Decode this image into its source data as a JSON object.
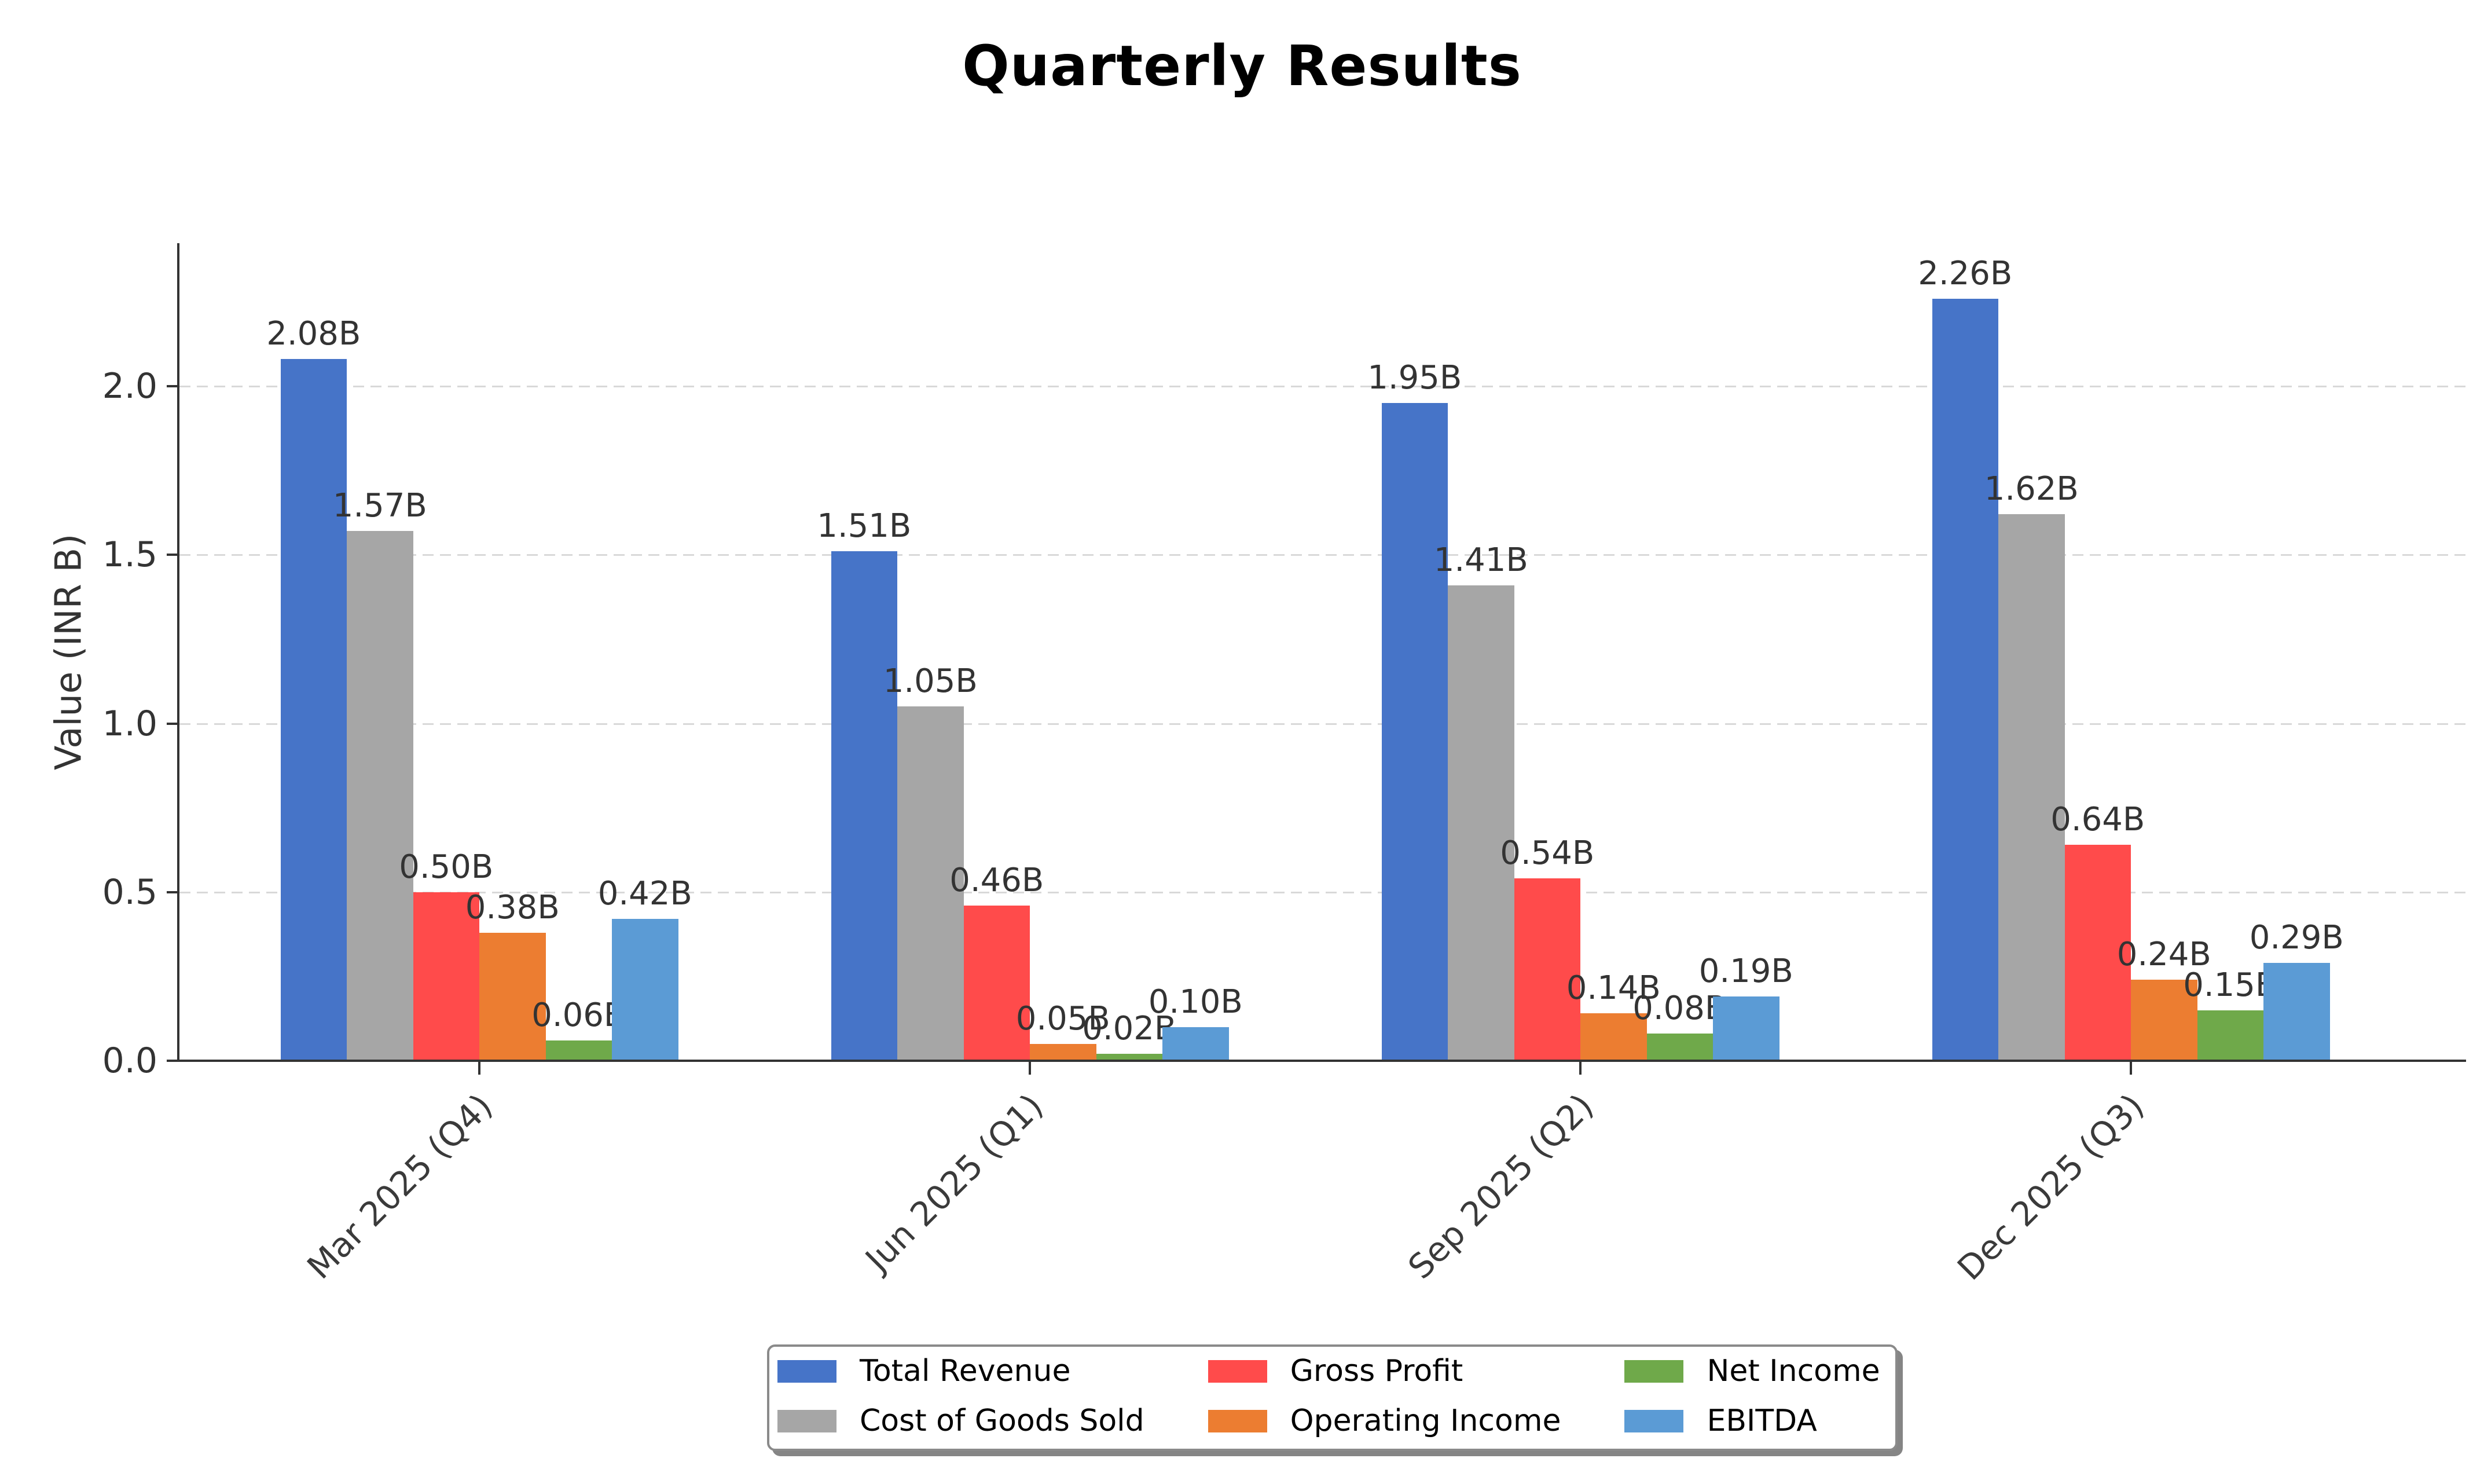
{
  "title": "Quarterly Results",
  "chart_data": {
    "type": "bar",
    "title": "Quarterly Results",
    "categories": [
      "Mar 2025 (Q4)",
      "Jun 2025 (Q1)",
      "Sep 2025 (Q2)",
      "Dec 2025 (Q3)"
    ],
    "series": [
      {
        "name": "Total Revenue",
        "color": "#4674C8",
        "values": [
          2.08,
          1.51,
          1.95,
          2.26
        ],
        "labels": [
          "2.08B",
          "1.51B",
          "1.95B",
          "2.26B"
        ]
      },
      {
        "name": "Cost of Goods Sold",
        "color": "#A6A6A6",
        "values": [
          1.57,
          1.05,
          1.41,
          1.62
        ],
        "labels": [
          "1.57B",
          "1.05B",
          "1.41B",
          "1.62B"
        ]
      },
      {
        "name": "Gross Profit",
        "color": "#FF4B4B",
        "values": [
          0.5,
          0.46,
          0.54,
          0.64
        ],
        "labels": [
          "0.50B",
          "0.46B",
          "0.54B",
          "0.64B"
        ]
      },
      {
        "name": "Operating Income",
        "color": "#EC7D31",
        "values": [
          0.38,
          0.05,
          0.14,
          0.24
        ],
        "labels": [
          "0.38B",
          "0.05B",
          "0.14B",
          "0.24B"
        ]
      },
      {
        "name": "Net Income",
        "color": "#6FA94A",
        "values": [
          0.06,
          0.02,
          0.08,
          0.15
        ],
        "labels": [
          "0.06B",
          "0.02B",
          "0.08B",
          "0.15B"
        ]
      },
      {
        "name": "EBITDA",
        "color": "#5B9BD5",
        "values": [
          0.42,
          0.1,
          0.19,
          0.29
        ],
        "labels": [
          "0.42B",
          "0.10B",
          "0.19B",
          "0.29B"
        ]
      }
    ],
    "xlabel": "",
    "ylabel": "Value (INR B)",
    "yticks": [
      0.0,
      0.5,
      1.0,
      1.5,
      2.0
    ],
    "ytick_labels": [
      "0.0",
      "0.5",
      "1.0",
      "1.5",
      "2.0"
    ],
    "ylim": [
      0,
      2.36
    ],
    "grid": "horizontal-dashed",
    "legend_position": "bottom-center",
    "legend_columns": 3
  }
}
